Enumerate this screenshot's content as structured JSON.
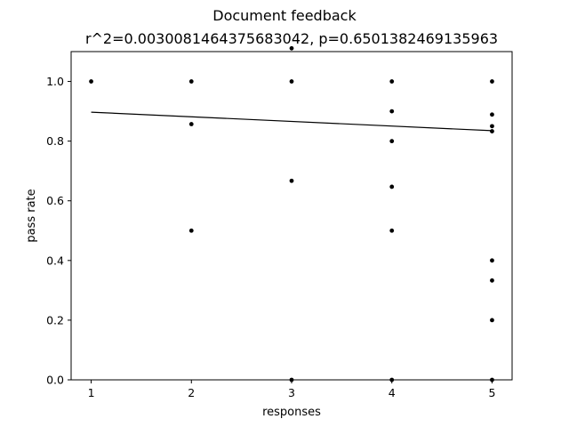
{
  "chart_data": {
    "type": "scatter",
    "title": "Document feedback",
    "subtitle": "r^2=0.0030081464375683042, p=0.6501382469135963",
    "xlabel": "responses",
    "ylabel": "pass rate",
    "xlim": [
      0.8,
      5.2
    ],
    "ylim": [
      0.0,
      1.1
    ],
    "x_ticks": [
      1,
      2,
      3,
      4,
      5
    ],
    "y_ticks": [
      0.0,
      0.2,
      0.4,
      0.6,
      0.8,
      1.0
    ],
    "x_tick_labels": [
      "1",
      "2",
      "3",
      "4",
      "5"
    ],
    "y_tick_labels": [
      "0.0",
      "0.2",
      "0.4",
      "0.6",
      "0.8",
      "1.0"
    ],
    "grid": false,
    "legend": "none",
    "points": [
      [
        1,
        1.0
      ],
      [
        2,
        1.0
      ],
      [
        2,
        0.857
      ],
      [
        2,
        0.5
      ],
      [
        3,
        1.111
      ],
      [
        3,
        1.0
      ],
      [
        3,
        0.667
      ],
      [
        3,
        0.0
      ],
      [
        4,
        1.0
      ],
      [
        4,
        0.9
      ],
      [
        4,
        0.8
      ],
      [
        4,
        0.647
      ],
      [
        4,
        0.5
      ],
      [
        4,
        0.0
      ],
      [
        5,
        1.0
      ],
      [
        5,
        0.889
      ],
      [
        5,
        0.85
      ],
      [
        5,
        0.833
      ],
      [
        5,
        0.4
      ],
      [
        5,
        0.333
      ],
      [
        5,
        0.2
      ],
      [
        5,
        0.0
      ]
    ],
    "fit_line": {
      "x": [
        1,
        5
      ],
      "y": [
        0.897,
        0.835
      ]
    },
    "colors": {
      "points": "#000000",
      "line": "#000000",
      "axes": "#000000"
    }
  }
}
